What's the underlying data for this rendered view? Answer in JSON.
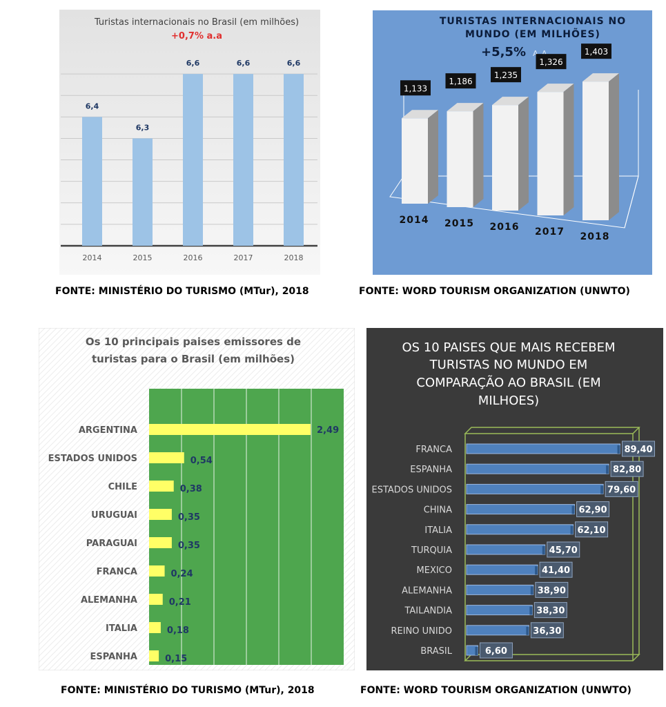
{
  "colors": {
    "chart1_bar": "#9dc3e6",
    "chart1_growth": "#e0302f",
    "chart2_bg": "#6e9bd3",
    "chart3_plot": "#4ea64e",
    "chart3_bar": "#ffff66",
    "chart4_bg": "#3a3a3a",
    "chart4_bar": "#4f81bd",
    "chart4_frame": "#9bbb59"
  },
  "captions": {
    "top_left": "FONTE: MINISTÉRIO DO TURISMO (MTur), 2018",
    "top_right": "FONTE: WORD TOURISM ORGANIZATION (UNWTO)",
    "bottom_left": "FONTE: MINISTÉRIO DO TURISMO (MTur), 2018",
    "bottom_right": "FONTE: WORD TOURISM ORGANIZATION (UNWTO)"
  },
  "chart_data": [
    {
      "type": "bar",
      "title": "Turistas internacionais no Brasil (em milhões)",
      "subtitle": "+0,7% a.a",
      "categories": [
        "2014",
        "2015",
        "2016",
        "2017",
        "2018"
      ],
      "values": [
        6.4,
        6.3,
        6.6,
        6.6,
        6.6
      ],
      "value_labels": [
        "6,4",
        "6,3",
        "6,6",
        "6,6",
        "6,6"
      ],
      "ylim": [
        5.8,
        6.7
      ],
      "grid": true
    },
    {
      "type": "bar",
      "title_lines": [
        "TURISTAS INTERNACIONAIS NO",
        "MUNDO (EM MILHÕES)"
      ],
      "subtitle": "+5,5%",
      "subtitle_suffix": "A.A",
      "categories": [
        "2014",
        "2015",
        "2016",
        "2017",
        "2018"
      ],
      "values": [
        1133,
        1186,
        1235,
        1326,
        1403
      ],
      "value_labels": [
        "1,133",
        "1,186",
        "1,235",
        "1,326",
        "1,403"
      ],
      "style": "3d"
    },
    {
      "type": "bar",
      "orientation": "horizontal",
      "title_lines": [
        "Os 10 principais paises emissores de",
        "turistas para o Brasil (em milhões)"
      ],
      "categories": [
        "ARGENTINA",
        "ESTADOS UNIDOS",
        "CHILE",
        "URUGUAI",
        "PARAGUAI",
        "FRANCA",
        "ALEMANHA",
        "ITALIA",
        "ESPANHA"
      ],
      "values": [
        2.49,
        0.54,
        0.38,
        0.35,
        0.35,
        0.24,
        0.21,
        0.18,
        0.15
      ],
      "value_labels": [
        "2,49",
        "0,54",
        "0,38",
        "0,35",
        "0,35",
        "0,24",
        "0,21",
        "0,18",
        "0,15"
      ],
      "xlim": [
        0,
        3
      ],
      "grid": true
    },
    {
      "type": "bar",
      "orientation": "horizontal",
      "title_lines": [
        "OS 10 PAISES QUE MAIS RECEBEM",
        "TURISTAS  NO MUNDO EM",
        "COMPARAÇÃO AO BRASIL (EM",
        "MILHOES)"
      ],
      "categories": [
        "FRANCA",
        "ESPANHA",
        "ESTADOS UNIDOS",
        "CHINA",
        "ITALIA",
        "TURQUIA",
        "MEXICO",
        "ALEMANHA",
        "TAILANDIA",
        "REINO UNIDO",
        "BRASIL"
      ],
      "values": [
        89.4,
        82.8,
        79.6,
        62.9,
        62.1,
        45.7,
        41.4,
        38.9,
        38.3,
        36.3,
        6.6
      ],
      "value_labels": [
        "89,40",
        "82,80",
        "79,60",
        "62,90",
        "62,10",
        "45,70",
        "41,40",
        "38,90",
        "38,30",
        "36,30",
        "6,60"
      ],
      "xlim": [
        0,
        90
      ]
    }
  ]
}
